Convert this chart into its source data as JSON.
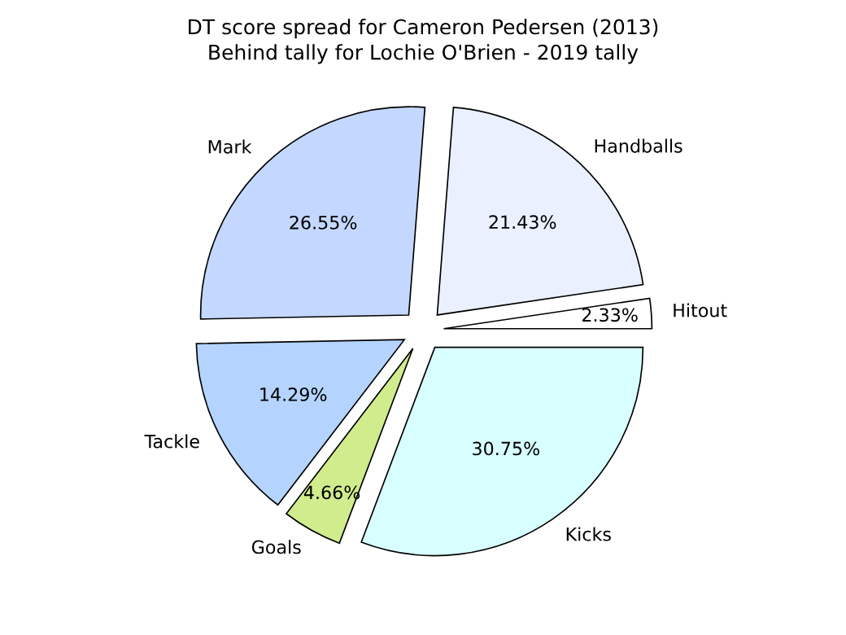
{
  "chart_data": {
    "type": "pie",
    "title": "DT score spread for Cameron Pedersen (2013)",
    "subtitle": "Behind tally for Lochie O'Brien - 2019 tally",
    "categories": [
      "Hitout",
      "Handballs",
      "Mark",
      "Tackle",
      "Goals",
      "Kicks"
    ],
    "values": [
      2.33,
      21.43,
      26.55,
      14.29,
      4.66,
      30.75
    ],
    "value_labels": [
      "2.33%",
      "21.43%",
      "26.55%",
      "14.29%",
      "4.66%",
      "30.75%"
    ],
    "colors": [
      "#ffffff",
      "#eaf0ff",
      "#c4d8ff",
      "#b4d4ff",
      "#d0ec8c",
      "#d8ffff"
    ]
  }
}
